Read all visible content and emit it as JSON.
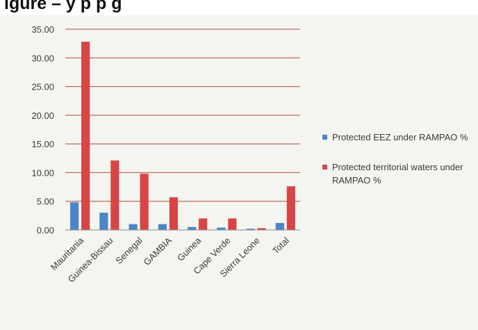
{
  "header": {
    "title_fragment": "igure   –   y p              p                                   g"
  },
  "chart_data": {
    "type": "bar",
    "categories": [
      "Mauritania",
      "Guinea-Bissau",
      "Senegal",
      "GAMBIA",
      "Guinea",
      "Cape Verde",
      "Sierra Leone",
      "Total"
    ],
    "series": [
      {
        "name": "Protected EEZ under RAMPAO %",
        "color": "#4a86c8",
        "values": [
          4.8,
          3.0,
          1.0,
          1.0,
          0.5,
          0.4,
          0.2,
          1.2
        ]
      },
      {
        "name": "Protected territorial waters under RAMPAO %",
        "color": "#d94545",
        "values": [
          32.8,
          12.1,
          9.8,
          5.7,
          2.0,
          2.0,
          0.3,
          7.6
        ]
      }
    ],
    "y_ticks": [
      "0.00",
      "5.00",
      "10.00",
      "15.00",
      "20.00",
      "25.00",
      "30.00",
      "35.00"
    ],
    "ylim": [
      0,
      35
    ],
    "grid": true,
    "legend_position": "right"
  }
}
